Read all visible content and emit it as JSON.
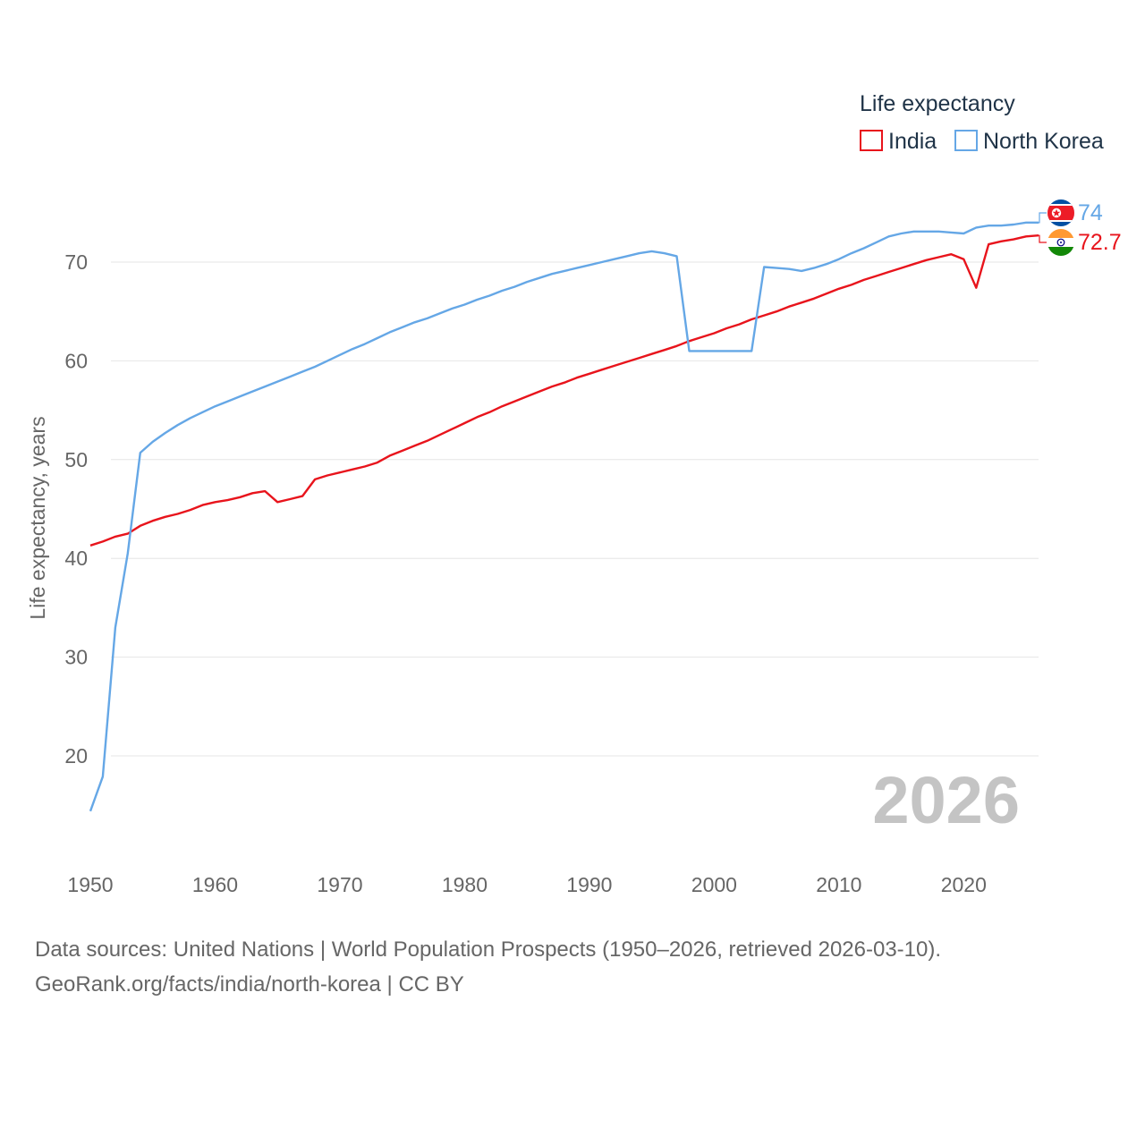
{
  "chart_data": {
    "type": "line",
    "legend_title": "Life expectancy",
    "ylabel": "Life expectancy, years",
    "xlabel": "",
    "xlim": [
      1950,
      2026
    ],
    "ylim": [
      10,
      77
    ],
    "x_ticks": [
      1950,
      1960,
      1970,
      1980,
      1990,
      2000,
      2010,
      2020
    ],
    "y_ticks": [
      20,
      30,
      40,
      50,
      60,
      70
    ],
    "year_watermark": "2026",
    "legend_position": "top-right",
    "series": [
      {
        "name": "India",
        "color": "#e8141c",
        "end_label": "72.7",
        "points": [
          [
            1950,
            41.3
          ],
          [
            1951,
            41.7
          ],
          [
            1952,
            42.2
          ],
          [
            1953,
            42.5
          ],
          [
            1954,
            43.3
          ],
          [
            1955,
            43.8
          ],
          [
            1956,
            44.2
          ],
          [
            1957,
            44.5
          ],
          [
            1958,
            44.9
          ],
          [
            1959,
            45.4
          ],
          [
            1960,
            45.7
          ],
          [
            1961,
            45.9
          ],
          [
            1962,
            46.2
          ],
          [
            1963,
            46.6
          ],
          [
            1964,
            46.8
          ],
          [
            1965,
            45.7
          ],
          [
            1966,
            46.0
          ],
          [
            1967,
            46.3
          ],
          [
            1968,
            48.0
          ],
          [
            1969,
            48.4
          ],
          [
            1970,
            48.7
          ],
          [
            1971,
            49.0
          ],
          [
            1972,
            49.3
          ],
          [
            1973,
            49.7
          ],
          [
            1974,
            50.4
          ],
          [
            1975,
            50.9
          ],
          [
            1976,
            51.4
          ],
          [
            1977,
            51.9
          ],
          [
            1978,
            52.5
          ],
          [
            1979,
            53.1
          ],
          [
            1980,
            53.7
          ],
          [
            1981,
            54.3
          ],
          [
            1982,
            54.8
          ],
          [
            1983,
            55.4
          ],
          [
            1984,
            55.9
          ],
          [
            1985,
            56.4
          ],
          [
            1986,
            56.9
          ],
          [
            1987,
            57.4
          ],
          [
            1988,
            57.8
          ],
          [
            1989,
            58.3
          ],
          [
            1990,
            58.7
          ],
          [
            1991,
            59.1
          ],
          [
            1992,
            59.5
          ],
          [
            1993,
            59.9
          ],
          [
            1994,
            60.3
          ],
          [
            1995,
            60.7
          ],
          [
            1996,
            61.1
          ],
          [
            1997,
            61.5
          ],
          [
            1998,
            62.0
          ],
          [
            1999,
            62.4
          ],
          [
            2000,
            62.8
          ],
          [
            2001,
            63.3
          ],
          [
            2002,
            63.7
          ],
          [
            2003,
            64.2
          ],
          [
            2004,
            64.6
          ],
          [
            2005,
            65.0
          ],
          [
            2006,
            65.5
          ],
          [
            2007,
            65.9
          ],
          [
            2008,
            66.3
          ],
          [
            2009,
            66.8
          ],
          [
            2010,
            67.3
          ],
          [
            2011,
            67.7
          ],
          [
            2012,
            68.2
          ],
          [
            2013,
            68.6
          ],
          [
            2014,
            69.0
          ],
          [
            2015,
            69.4
          ],
          [
            2016,
            69.8
          ],
          [
            2017,
            70.2
          ],
          [
            2018,
            70.5
          ],
          [
            2019,
            70.8
          ],
          [
            2020,
            70.3
          ],
          [
            2021,
            67.4
          ],
          [
            2022,
            71.8
          ],
          [
            2023,
            72.1
          ],
          [
            2024,
            72.3
          ],
          [
            2025,
            72.6
          ],
          [
            2026,
            72.7
          ]
        ]
      },
      {
        "name": "North Korea",
        "color": "#65a7e6",
        "end_label": "74",
        "points": [
          [
            1950,
            14.4
          ],
          [
            1951,
            17.9
          ],
          [
            1952,
            33.0
          ],
          [
            1953,
            40.5
          ],
          [
            1954,
            50.7
          ],
          [
            1955,
            51.8
          ],
          [
            1956,
            52.7
          ],
          [
            1957,
            53.5
          ],
          [
            1958,
            54.2
          ],
          [
            1959,
            54.8
          ],
          [
            1960,
            55.4
          ],
          [
            1961,
            55.9
          ],
          [
            1962,
            56.4
          ],
          [
            1963,
            56.9
          ],
          [
            1964,
            57.4
          ],
          [
            1965,
            57.9
          ],
          [
            1966,
            58.4
          ],
          [
            1967,
            58.9
          ],
          [
            1968,
            59.4
          ],
          [
            1969,
            60.0
          ],
          [
            1970,
            60.6
          ],
          [
            1971,
            61.2
          ],
          [
            1972,
            61.7
          ],
          [
            1973,
            62.3
          ],
          [
            1974,
            62.9
          ],
          [
            1975,
            63.4
          ],
          [
            1976,
            63.9
          ],
          [
            1977,
            64.3
          ],
          [
            1978,
            64.8
          ],
          [
            1979,
            65.3
          ],
          [
            1980,
            65.7
          ],
          [
            1981,
            66.2
          ],
          [
            1982,
            66.6
          ],
          [
            1983,
            67.1
          ],
          [
            1984,
            67.5
          ],
          [
            1985,
            68.0
          ],
          [
            1986,
            68.4
          ],
          [
            1987,
            68.8
          ],
          [
            1988,
            69.1
          ],
          [
            1989,
            69.4
          ],
          [
            1990,
            69.7
          ],
          [
            1991,
            70.0
          ],
          [
            1992,
            70.3
          ],
          [
            1993,
            70.6
          ],
          [
            1994,
            70.9
          ],
          [
            1995,
            71.1
          ],
          [
            1996,
            70.9
          ],
          [
            1997,
            70.6
          ],
          [
            1998,
            61.0
          ],
          [
            1999,
            61.0
          ],
          [
            2000,
            61.0
          ],
          [
            2001,
            61.0
          ],
          [
            2002,
            61.0
          ],
          [
            2003,
            61.0
          ],
          [
            2004,
            69.5
          ],
          [
            2005,
            69.4
          ],
          [
            2006,
            69.3
          ],
          [
            2007,
            69.1
          ],
          [
            2008,
            69.4
          ],
          [
            2009,
            69.8
          ],
          [
            2010,
            70.3
          ],
          [
            2011,
            70.9
          ],
          [
            2012,
            71.4
          ],
          [
            2013,
            72.0
          ],
          [
            2014,
            72.6
          ],
          [
            2015,
            72.9
          ],
          [
            2016,
            73.1
          ],
          [
            2017,
            73.1
          ],
          [
            2018,
            73.1
          ],
          [
            2019,
            73.0
          ],
          [
            2020,
            72.9
          ],
          [
            2021,
            73.5
          ],
          [
            2022,
            73.7
          ],
          [
            2023,
            73.7
          ],
          [
            2024,
            73.8
          ],
          [
            2025,
            74.0
          ],
          [
            2026,
            74.0
          ]
        ]
      }
    ]
  },
  "footer": {
    "sources": "Data sources: United Nations | World Population Prospects (1950–2026, retrieved 2026-03-10).",
    "attribution": "GeoRank.org/facts/india/north-korea | CC BY"
  },
  "colors": {
    "axis_text": "#666666",
    "grid": "#e6e6e6",
    "legend_text": "#1f3347",
    "watermark": "#c4c4c4"
  }
}
